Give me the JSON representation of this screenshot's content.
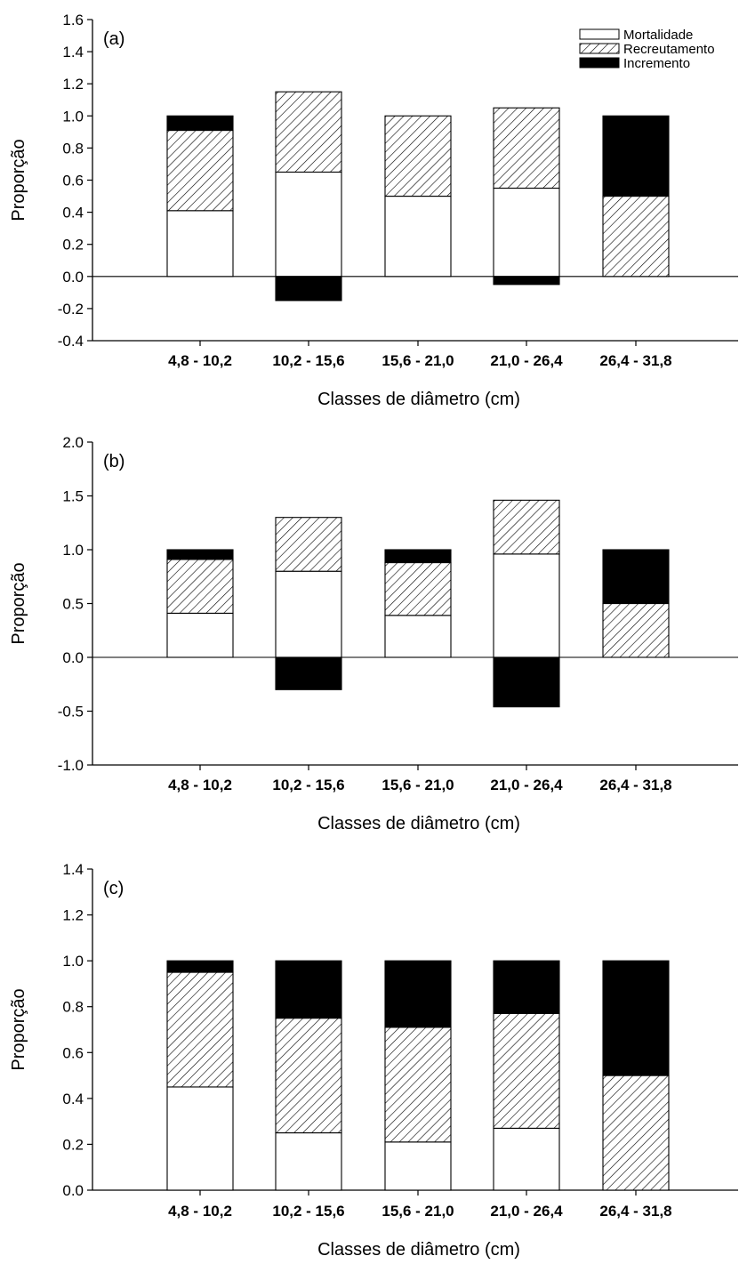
{
  "legend": [
    {
      "name": "Mortalidade",
      "fill": "#ffffff"
    },
    {
      "name": "Recreutamento",
      "fill": "hatch"
    },
    {
      "name": "Incremento",
      "fill": "#000000"
    }
  ],
  "chart_data": [
    {
      "type": "bar",
      "panel_label": "(a)",
      "categories": [
        "4,8 - 10,2",
        "10,2 - 15,6",
        "15,6 - 21,0",
        "21,0 - 26,4",
        "26,4 - 31,8"
      ],
      "series": [
        {
          "name": "Mortalidade",
          "values": [
            0.41,
            0.65,
            0.5,
            0.55,
            0.0
          ]
        },
        {
          "name": "Recreutamento",
          "values": [
            0.5,
            0.5,
            0.5,
            0.5,
            0.5
          ]
        },
        {
          "name": "Incremento",
          "values": [
            0.09,
            -0.15,
            0.0,
            -0.05,
            0.5
          ]
        }
      ],
      "xlabel": "Classes de diâmetro (cm)",
      "ylabel": "Proporção",
      "ylim": [
        -0.4,
        1.6
      ],
      "yticks": [
        "-0.4",
        "-0.2",
        "0.0",
        "0.2",
        "0.4",
        "0.6",
        "0.8",
        "1.0",
        "1.2",
        "1.4",
        "1.6"
      ],
      "legend_position": "top-right",
      "grid": false
    },
    {
      "type": "bar",
      "panel_label": "(b)",
      "categories": [
        "4,8 - 10,2",
        "10,2 - 15,6",
        "15,6 - 21,0",
        "21,0 - 26,4",
        "26,4 - 31,8"
      ],
      "series": [
        {
          "name": "Mortalidade",
          "values": [
            0.41,
            0.8,
            0.39,
            0.96,
            0.0
          ]
        },
        {
          "name": "Recreutamento",
          "values": [
            0.5,
            0.5,
            0.49,
            0.5,
            0.5
          ]
        },
        {
          "name": "Incremento",
          "values": [
            0.09,
            -0.3,
            0.12,
            -0.46,
            0.5
          ]
        }
      ],
      "xlabel": "Classes de diâmetro (cm)",
      "ylabel": "Proporção",
      "ylim": [
        -1.0,
        2.0
      ],
      "yticks": [
        "-1.0",
        "-0.5",
        "0.0",
        "0.5",
        "1.0",
        "1.5",
        "2.0"
      ],
      "grid": false
    },
    {
      "type": "bar",
      "panel_label": "(c)",
      "categories": [
        "4,8 - 10,2",
        "10,2 - 15,6",
        "15,6 - 21,0",
        "21,0 - 26,4",
        "26,4 - 31,8"
      ],
      "series": [
        {
          "name": "Mortalidade",
          "values": [
            0.45,
            0.25,
            0.21,
            0.27,
            0.0
          ]
        },
        {
          "name": "Recreutamento",
          "values": [
            0.5,
            0.5,
            0.5,
            0.5,
            0.5
          ]
        },
        {
          "name": "Incremento",
          "values": [
            0.05,
            0.25,
            0.29,
            0.23,
            0.5
          ]
        }
      ],
      "xlabel": "Classes de diâmetro (cm)",
      "ylabel": "Proporção",
      "ylim": [
        0.0,
        1.4
      ],
      "yticks": [
        "0.0",
        "0.2",
        "0.4",
        "0.6",
        "0.8",
        "1.0",
        "1.2",
        "1.4"
      ],
      "grid": false
    }
  ]
}
